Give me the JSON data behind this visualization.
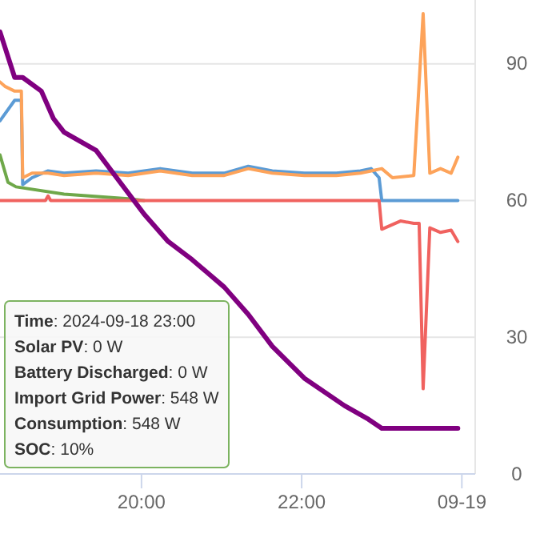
{
  "chart_data": {
    "type": "line",
    "xlim": [
      "2024-09-18T18:14",
      "2024-09-19T00:10"
    ],
    "xticks": [
      {
        "value": "2024-09-18T20:00",
        "label": "20:00"
      },
      {
        "value": "2024-09-18T22:00",
        "label": "22:00"
      },
      {
        "value": "2024-09-19T00:00",
        "label": "09-19"
      }
    ],
    "ylim": [
      0,
      104
    ],
    "yticks": [
      0,
      30,
      60,
      90
    ],
    "grid": "y",
    "series": [
      {
        "color": "#6fa84a",
        "x": [
          "2024-09-18T18:14",
          "2024-09-18T18:20",
          "2024-09-18T18:26",
          "2024-09-18T19:02",
          "2024-09-18T19:50",
          "2024-09-18T20:02"
        ],
        "values": [
          70,
          64,
          63,
          61.4,
          60.4,
          60
        ]
      },
      {
        "color": "#5b9bd5",
        "x": [
          "2024-09-18T18:14",
          "2024-09-18T18:25",
          "2024-09-18T18:30",
          "2024-09-18T18:31",
          "2024-09-18T18:38",
          "2024-09-18T18:50",
          "2024-09-18T19:02",
          "2024-09-18T19:26",
          "2024-09-18T19:50",
          "2024-09-18T20:14",
          "2024-09-18T20:38",
          "2024-09-18T21:02",
          "2024-09-18T21:20",
          "2024-09-18T21:38",
          "2024-09-18T22:02",
          "2024-09-18T22:26",
          "2024-09-18T22:44",
          "2024-09-18T22:52",
          "2024-09-18T22:58",
          "2024-09-18T23:00",
          "2024-09-18T23:57"
        ],
        "values": [
          77.5,
          82,
          82,
          63.5,
          65,
          66.5,
          66,
          66.5,
          66,
          67,
          66,
          66,
          67.5,
          66.5,
          66,
          66,
          66.5,
          67,
          65,
          60,
          60
        ]
      },
      {
        "color": "#fda35a",
        "x": [
          "2024-09-18T18:14",
          "2024-09-18T18:18",
          "2024-09-18T18:25",
          "2024-09-18T18:30",
          "2024-09-18T18:31",
          "2024-09-18T18:38",
          "2024-09-18T18:50",
          "2024-09-18T19:02",
          "2024-09-18T19:26",
          "2024-09-18T19:50",
          "2024-09-18T20:14",
          "2024-09-18T20:38",
          "2024-09-18T21:02",
          "2024-09-18T21:20",
          "2024-09-18T21:38",
          "2024-09-18T22:02",
          "2024-09-18T22:26",
          "2024-09-18T22:44",
          "2024-09-18T22:52",
          "2024-09-18T23:00",
          "2024-09-18T23:08",
          "2024-09-18T23:24",
          "2024-09-18T23:31",
          "2024-09-18T23:36",
          "2024-09-18T23:44",
          "2024-09-18T23:52",
          "2024-09-18T23:57"
        ],
        "values": [
          86,
          85,
          84,
          84,
          65,
          66,
          66,
          65.5,
          66,
          65.5,
          66.5,
          65.5,
          65.5,
          67,
          66,
          65.5,
          65.5,
          66,
          66.5,
          67,
          65,
          65.5,
          101,
          66,
          67,
          66,
          69.5
        ]
      },
      {
        "color": "#f0625f",
        "x": [
          "2024-09-18T18:14",
          "2024-09-18T18:48",
          "2024-09-18T18:50",
          "2024-09-18T18:52",
          "2024-09-18T22:58",
          "2024-09-18T23:00",
          "2024-09-18T23:14",
          "2024-09-18T23:24",
          "2024-09-18T23:28",
          "2024-09-18T23:31",
          "2024-09-18T23:36",
          "2024-09-18T23:44",
          "2024-09-18T23:52",
          "2024-09-18T23:57"
        ],
        "values": [
          60,
          60,
          61,
          60,
          60,
          53.7,
          55.5,
          55,
          55,
          18.7,
          54,
          53,
          53.5,
          51
        ]
      },
      {
        "color": "#800080",
        "x": [
          "2024-09-18T18:14",
          "2024-09-18T18:25",
          "2024-09-18T18:31",
          "2024-09-18T18:45",
          "2024-09-18T18:54",
          "2024-09-18T19:02",
          "2024-09-18T19:26",
          "2024-09-18T19:44",
          "2024-09-18T20:02",
          "2024-09-18T20:20",
          "2024-09-18T20:38",
          "2024-09-18T21:02",
          "2024-09-18T21:20",
          "2024-09-18T21:38",
          "2024-09-18T22:02",
          "2024-09-18T22:32",
          "2024-09-18T22:50",
          "2024-09-18T23:00",
          "2024-09-18T23:57"
        ],
        "values": [
          97,
          87,
          87,
          84,
          78,
          75,
          71,
          64,
          57,
          51,
          47,
          41,
          35,
          28,
          21,
          15,
          12,
          10,
          10
        ]
      }
    ],
    "annotations": [
      "Time: 2024-09-18 23:00",
      "Solar PV: 0 W",
      "Battery Discharged: 0 W",
      "Import Grid Power: 548 W",
      "Consumption: 548 W",
      "SOC: 10%"
    ]
  }
}
